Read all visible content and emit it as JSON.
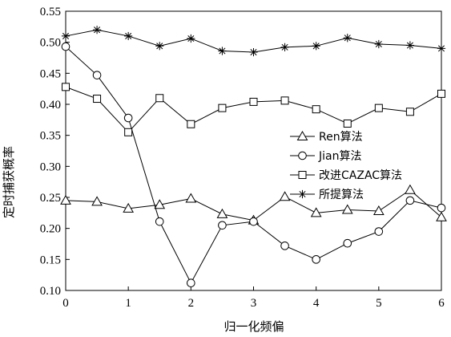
{
  "chart_data": {
    "type": "line",
    "xlabel": "归一化频偏",
    "ylabel": "定时捕获概率",
    "xlim": [
      0,
      6
    ],
    "ylim": [
      0.1,
      0.55
    ],
    "xticks": [
      "0",
      "1",
      "2",
      "3",
      "4",
      "5",
      "6"
    ],
    "yticks": [
      "0.10",
      "0.15",
      "0.20",
      "0.25",
      "0.30",
      "0.35",
      "0.40",
      "0.45",
      "0.50",
      "0.55"
    ],
    "x": [
      0,
      0.5,
      1,
      1.5,
      2,
      2.5,
      3,
      3.5,
      4,
      4.5,
      5,
      5.5,
      6
    ],
    "grid": false,
    "legend_position": "center-right",
    "series": [
      {
        "name": "Ren算法",
        "marker": "triangle",
        "values": [
          0.245,
          0.243,
          0.232,
          0.238,
          0.248,
          0.223,
          0.213,
          0.251,
          0.225,
          0.23,
          0.228,
          0.262,
          0.218
        ]
      },
      {
        "name": "Jian算法",
        "marker": "circle",
        "values": [
          0.493,
          0.447,
          0.378,
          0.211,
          0.112,
          0.205,
          0.211,
          0.172,
          0.15,
          0.176,
          0.195,
          0.245,
          0.233
        ]
      },
      {
        "name": "改进CAZAC算法",
        "marker": "square",
        "values": [
          0.428,
          0.409,
          0.355,
          0.41,
          0.368,
          0.394,
          0.404,
          0.406,
          0.392,
          0.369,
          0.394,
          0.388,
          0.417
        ]
      },
      {
        "name": "所提算法",
        "marker": "star",
        "values": [
          0.51,
          0.52,
          0.51,
          0.494,
          0.506,
          0.486,
          0.484,
          0.492,
          0.494,
          0.507,
          0.497,
          0.495,
          0.49
        ]
      }
    ]
  }
}
